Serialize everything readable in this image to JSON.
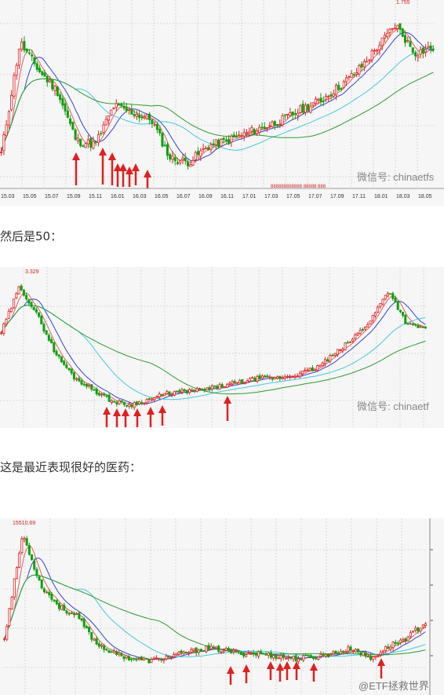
{
  "captions": {
    "then_50": "然后是50：",
    "pharma": "这是最近表现很好的医药："
  },
  "watermark": {
    "text": "微信号: chinaetfs",
    "text_short": "微信号: chinaetf",
    "weibo": "@ETF拯救世界"
  },
  "colors": {
    "up": "#e02020",
    "down": "#11a011",
    "ma_short": "#e06060",
    "ma_mid": "#3344cc",
    "ma_long": "#44c8e0",
    "ma_xlong": "#2e9a2e",
    "arrow": "#e02020",
    "grid": "#d8d8d8",
    "bg": "#f6f6f6"
  },
  "chart_data": [
    {
      "type": "candlestick",
      "title": "",
      "peak_label": "1.755",
      "x_ticks": [
        "15.03",
        "15.05",
        "15.07",
        "15.09",
        "15.11",
        "16.01",
        "16.03",
        "16.05",
        "16.07",
        "16.09",
        "16.11",
        "17.01",
        "17.03",
        "17.05",
        "17.07",
        "17.09",
        "17.11",
        "18.01",
        "18.03",
        "18.05"
      ],
      "close_path": [
        0.95,
        1.58,
        1.42,
        1.3,
        1.02,
        1.0,
        1.22,
        1.18,
        1.14,
        0.92,
        0.9,
        0.99,
        1.02,
        1.06,
        1.1,
        1.14,
        1.2,
        1.25,
        1.33,
        1.42,
        1.55,
        1.68,
        1.52,
        1.55
      ],
      "signal_arrows_count": 8,
      "red_label": "888888888888 88888 888"
    },
    {
      "type": "candlestick",
      "title": "",
      "peak_label": "3.329",
      "signal_arrows_count": 7
    },
    {
      "type": "candlestick",
      "title": "",
      "peak_label": "15510.69",
      "signal_arrows_count": 10
    }
  ]
}
